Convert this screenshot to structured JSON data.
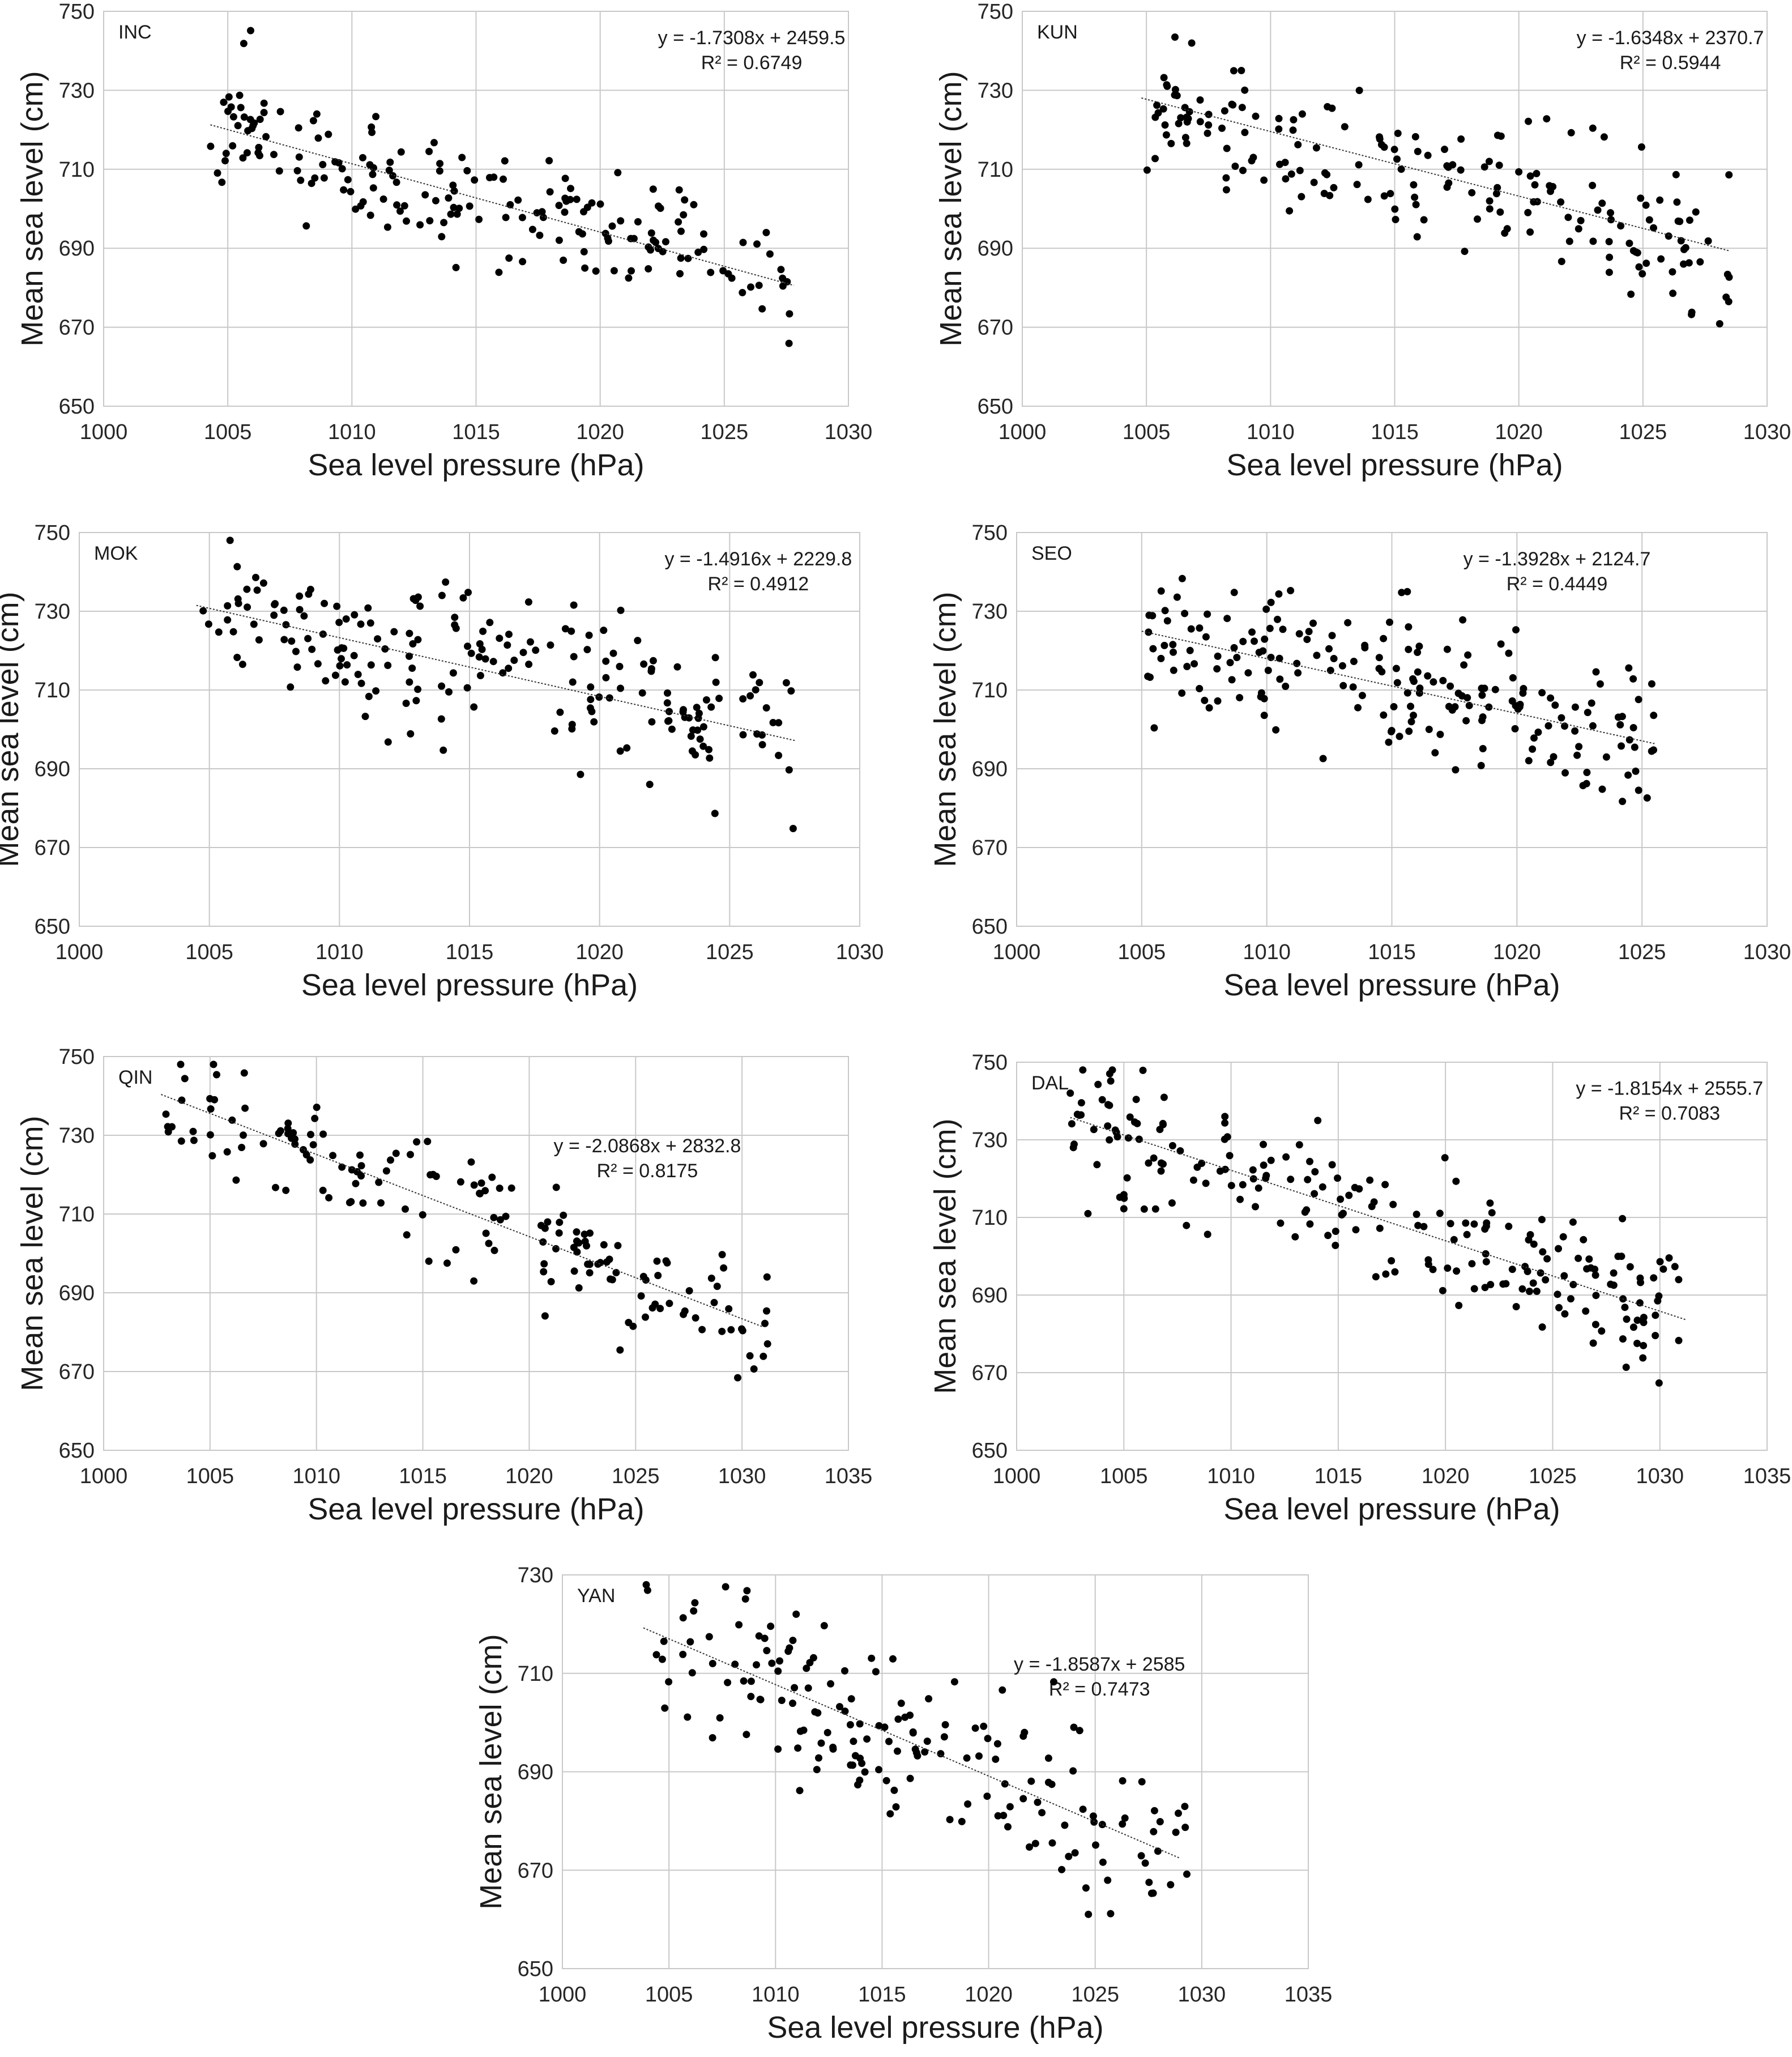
{
  "figure": {
    "background": "#ffffff",
    "point_color": "#000000",
    "grid_color": "#c8c8c8"
  },
  "chart_data": [
    {
      "type": "scatter",
      "station": "INC",
      "xlabel": "Sea level pressure (hPa)",
      "ylabel": "Mean sea level (cm)",
      "xlim": [
        1000,
        1030
      ],
      "ylim": [
        650,
        750
      ],
      "xticks": [
        1000,
        1005,
        1010,
        1015,
        1020,
        1025,
        1030
      ],
      "yticks": [
        650,
        670,
        690,
        710,
        730,
        750
      ],
      "equation": "y = -1.7308x + 2459.5",
      "r2": "R² = 0.6749",
      "trend": {
        "slope": -1.7308,
        "intercept": 2459.5,
        "x_range": [
          1004.3,
          1027.8
        ]
      },
      "cloud": {
        "n": 190,
        "x_range": [
          1004.3,
          1027.8
        ],
        "noise": 7.5,
        "seed": 11
      }
    },
    {
      "type": "scatter",
      "station": "KUN",
      "xlabel": "Sea level pressure (hPa)",
      "ylabel": "Mean sea level (cm)",
      "xlim": [
        1000,
        1030
      ],
      "ylim": [
        650,
        750
      ],
      "xticks": [
        1000,
        1005,
        1010,
        1015,
        1020,
        1025,
        1030
      ],
      "yticks": [
        650,
        670,
        690,
        710,
        730,
        750
      ],
      "equation": "y = -1.6348x + 2370.7",
      "r2": "R² = 0.5944",
      "trend": {
        "slope": -1.6348,
        "intercept": 2370.7,
        "x_range": [
          1004.8,
          1028.5
        ]
      },
      "cloud": {
        "n": 190,
        "x_range": [
          1004.8,
          1028.5
        ],
        "noise": 8.5,
        "seed": 23
      }
    },
    {
      "type": "scatter",
      "station": "MOK",
      "xlabel": "Sea level pressure (hPa)",
      "ylabel": "Mean sea level (cm)",
      "xlim": [
        1000,
        1030
      ],
      "ylim": [
        650,
        750
      ],
      "xticks": [
        1000,
        1005,
        1010,
        1015,
        1020,
        1025,
        1030
      ],
      "yticks": [
        650,
        670,
        690,
        710,
        730,
        750
      ],
      "equation": "y = -1.4916x + 2229.8",
      "r2": "R² = 0.4912",
      "trend": {
        "slope": -1.4916,
        "intercept": 2229.8,
        "x_range": [
          1004.5,
          1027.5
        ]
      },
      "cloud": {
        "n": 200,
        "x_range": [
          1004.5,
          1027.5
        ],
        "noise": 9.5,
        "seed": 37
      }
    },
    {
      "type": "scatter",
      "station": "SEO",
      "xlabel": "Sea level pressure (hPa)",
      "ylabel": "Mean sea level (cm)",
      "xlim": [
        1000,
        1030
      ],
      "ylim": [
        650,
        750
      ],
      "xticks": [
        1000,
        1005,
        1010,
        1015,
        1020,
        1025,
        1030
      ],
      "yticks": [
        650,
        670,
        690,
        710,
        730,
        750
      ],
      "equation": "y = -1.3928x + 2124.7",
      "r2": "R² = 0.4449",
      "trend": {
        "slope": -1.3928,
        "intercept": 2124.7,
        "x_range": [
          1005.0,
          1025.5
        ]
      },
      "cloud": {
        "n": 200,
        "x_range": [
          1005.0,
          1025.5
        ],
        "noise": 9.5,
        "seed": 41
      }
    },
    {
      "type": "scatter",
      "station": "QIN",
      "xlabel": "Sea level pressure (hPa)",
      "ylabel": "Mean sea level (cm)",
      "xlim": [
        1000,
        1035
      ],
      "ylim": [
        650,
        750
      ],
      "xticks": [
        1000,
        1005,
        1010,
        1015,
        1020,
        1025,
        1030,
        1035
      ],
      "yticks": [
        650,
        670,
        690,
        710,
        730,
        750
      ],
      "equation": "y = -2.0868x + 2832.8",
      "r2": "R² = 0.8175",
      "trend": {
        "slope": -2.0868,
        "intercept": 2832.8,
        "x_range": [
          1002.7,
          1031.0
        ]
      },
      "cloud": {
        "n": 165,
        "x_range": [
          1002.7,
          1031.2
        ],
        "noise": 7.0,
        "seed": 53
      }
    },
    {
      "type": "scatter",
      "station": "DAL",
      "xlabel": "Sea level pressure (hPa)",
      "ylabel": "Mean sea level (cm)",
      "xlim": [
        1000,
        1035
      ],
      "ylim": [
        650,
        750
      ],
      "xticks": [
        1000,
        1005,
        1010,
        1015,
        1020,
        1025,
        1030,
        1035
      ],
      "yticks": [
        650,
        670,
        690,
        710,
        730,
        750
      ],
      "equation": "y = -1.8154x + 2555.7",
      "r2": "R² = 0.7083",
      "trend": {
        "slope": -1.8154,
        "intercept": 2555.7,
        "x_range": [
          1002.5,
          1031.2
        ]
      },
      "cloud": {
        "n": 215,
        "x_range": [
          1002.5,
          1031.2
        ],
        "noise": 8.0,
        "seed": 67
      }
    },
    {
      "type": "scatter",
      "station": "YAN",
      "xlabel": "Sea level pressure (hPa)",
      "ylabel": "Mean sea level (cm)",
      "xlim": [
        1000,
        1035
      ],
      "ylim": [
        650,
        730
      ],
      "xticks": [
        1000,
        1005,
        1010,
        1015,
        1020,
        1025,
        1030,
        1035
      ],
      "yticks": [
        650,
        670,
        690,
        710,
        730
      ],
      "equation": "y = -1.8587x + 2585",
      "r2": "R² = 0.7473",
      "trend": {
        "slope": -1.8587,
        "intercept": 2585,
        "x_range": [
          1003.8,
          1029.0
        ]
      },
      "cloud": {
        "n": 175,
        "x_range": [
          1003.8,
          1029.5
        ],
        "noise": 8.0,
        "seed": 79
      }
    }
  ]
}
